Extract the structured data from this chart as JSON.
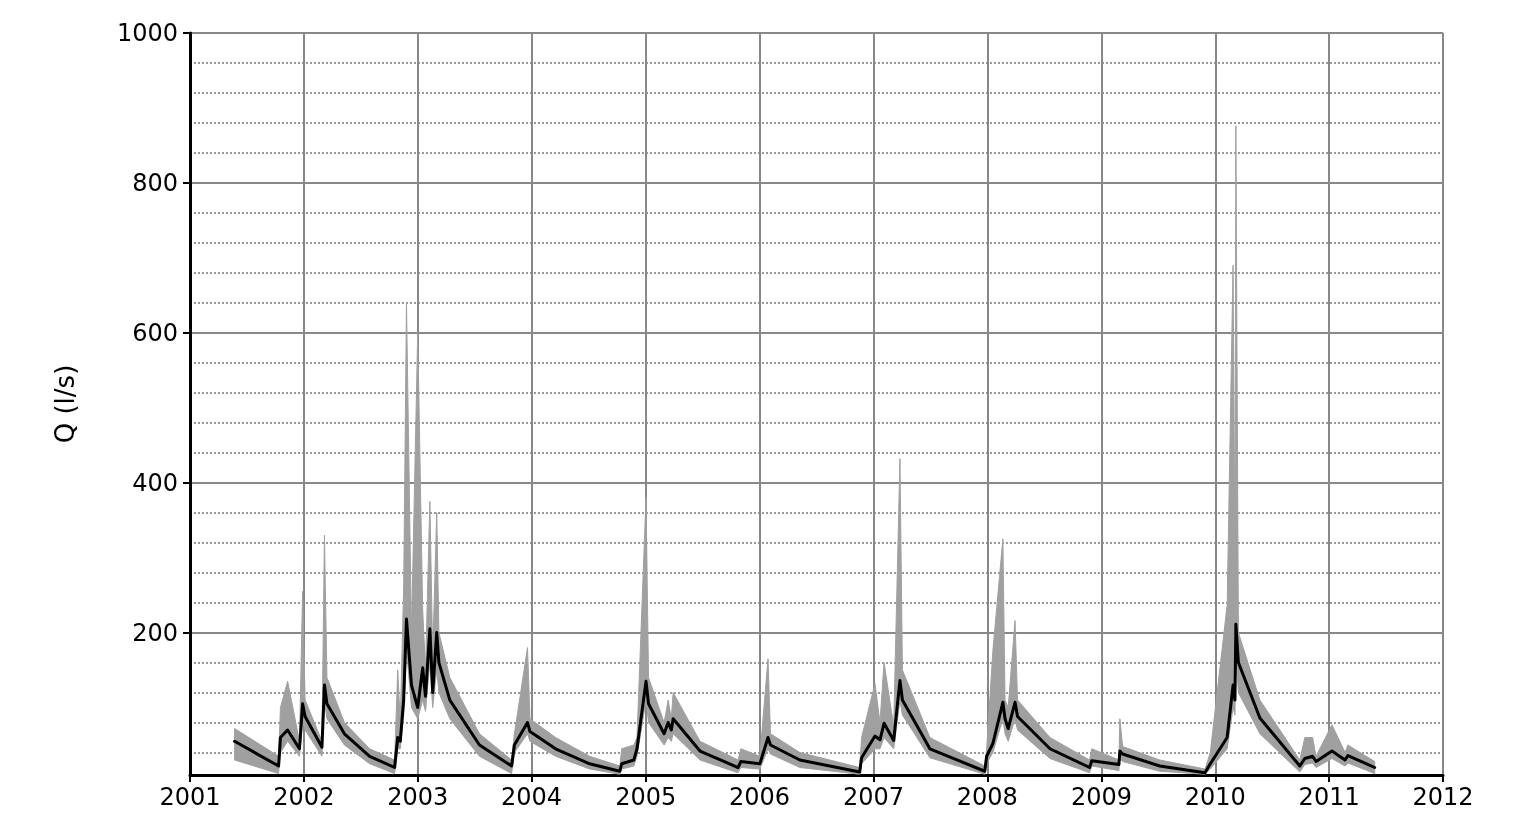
{
  "chart_data": {
    "type": "line",
    "ylabel": "Q (l/s)",
    "xlim": [
      "2001",
      "2012"
    ],
    "xticks": [
      "2001",
      "2002",
      "2003",
      "2004",
      "2005",
      "2006",
      "2007",
      "2008",
      "2009",
      "2010",
      "2011",
      "2012"
    ],
    "ylim": [
      10,
      1000
    ],
    "yticks": [
      {
        "value": 40,
        "label": null
      },
      {
        "value": 80,
        "label": null
      },
      {
        "value": 120,
        "label": null
      },
      {
        "value": 160,
        "label": null
      },
      200,
      {
        "value": 240,
        "label": null
      },
      {
        "value": 280,
        "label": null
      },
      {
        "value": 320,
        "label": null
      },
      {
        "value": 360,
        "label": null
      },
      400,
      {
        "value": 440,
        "label": null
      },
      {
        "value": 480,
        "label": null
      },
      {
        "value": 520,
        "label": null
      },
      {
        "value": 560,
        "label": null
      },
      600,
      {
        "value": 640,
        "label": null
      },
      {
        "value": 680,
        "label": null
      },
      {
        "value": 720,
        "label": null
      },
      {
        "value": 760,
        "label": null
      },
      800,
      {
        "value": 840,
        "label": null
      },
      {
        "value": 880,
        "label": null
      },
      {
        "value": 920,
        "label": null
      },
      {
        "value": 960,
        "label": null
      },
      1000
    ],
    "grid": true,
    "legend": false,
    "marker": "none",
    "line_style": "solid",
    "series": [
      {
        "color": "#000000",
        "x": [
          "2001-05-24",
          "2001-10-12",
          "2001-10-18",
          "2001-11-10",
          "2001-12-18",
          "2001-12-28",
          "2002-01-05",
          "2002-02-28",
          "2002-03-08",
          "2002-03-16",
          "2002-05-11",
          "2002-07-31",
          "2002-10-19",
          "2002-10-29",
          "2002-11-06",
          "2002-11-17",
          "2002-11-26",
          "2002-12-12",
          "2003-01-01",
          "2003-01-17",
          "2003-01-26",
          "2003-02-09",
          "2003-02-18",
          "2003-03-03",
          "2003-03-10",
          "2003-04-14",
          "2003-07-18",
          "2003-10-29",
          "2003-11-07",
          "2003-12-19",
          "2003-12-27",
          "2004-03-18",
          "2004-07-05",
          "2004-10-10",
          "2004-10-16",
          "2004-11-24",
          "2004-12-04",
          "2005-01-02",
          "2005-01-10",
          "2005-03-01",
          "2005-03-14",
          "2005-03-24",
          "2005-03-30",
          "2005-06-24",
          "2005-10-24",
          "2005-11-02",
          "2006-01-02",
          "2006-01-28",
          "2006-02-05",
          "2006-05-10",
          "2006-11-18",
          "2006-11-24",
          "2007-01-06",
          "2007-01-22",
          "2007-02-04",
          "2007-03-07",
          "2007-03-27",
          "2007-04-04",
          "2007-07-01",
          "2007-12-24",
          "2007-12-30",
          "2008-01-19",
          "2008-02-20",
          "2008-02-27",
          "2008-03-08",
          "2008-03-30",
          "2008-04-07",
          "2008-07-20",
          "2008-11-24",
          "2008-12-01",
          "2009-02-26",
          "2009-03-01",
          "2009-03-10",
          "2009-07-07",
          "2009-11-29",
          "2009-12-16",
          "2010-02-08",
          "2010-02-27",
          "2010-03-05",
          "2010-03-08",
          "2010-03-16",
          "2010-05-24",
          "2010-09-29",
          "2010-10-15",
          "2010-11-09",
          "2010-11-20",
          "2011-01-10",
          "2011-02-21",
          "2011-03-02",
          "2011-05-27"
        ],
        "values": [
          55,
          22,
          60,
          70,
          45,
          105,
          88,
          47,
          130,
          105,
          65,
          35,
          20,
          60,
          55,
          110,
          218,
          130,
          100,
          153,
          115,
          205,
          120,
          200,
          160,
          110,
          50,
          22,
          50,
          80,
          68,
          45,
          25,
          15,
          25,
          30,
          45,
          135,
          105,
          65,
          80,
          70,
          85,
          42,
          20,
          28,
          25,
          60,
          50,
          30,
          14,
          33,
          62,
          57,
          79,
          56,
          136,
          110,
          45,
          15,
          35,
          52,
          107,
          85,
          72,
          107,
          88,
          45,
          20,
          29,
          24,
          42,
          38,
          22,
          13,
          25,
          60,
          130,
          110,
          211,
          160,
          86,
          22,
          32,
          35,
          28,
          42,
          30,
          36,
          20
        ],
        "upper": [
          72,
          35,
          100,
          135,
          55,
          255,
          110,
          55,
          330,
          140,
          80,
          45,
          30,
          150,
          80,
          260,
          640,
          200,
          600,
          230,
          150,
          375,
          170,
          360,
          200,
          140,
          65,
          30,
          65,
          180,
          85,
          60,
          35,
          22,
          45,
          50,
          60,
          380,
          140,
          80,
          110,
          85,
          120,
          55,
          30,
          45,
          35,
          165,
          65,
          40,
          20,
          60,
          132,
          80,
          160,
          75,
          432,
          150,
          60,
          22,
          45,
          176,
          325,
          110,
          100,
          216,
          110,
          60,
          30,
          45,
          30,
          85,
          48,
          30,
          18,
          40,
          237,
          690,
          300,
          876,
          200,
          110,
          30,
          60,
          60,
          35,
          77,
          40,
          50,
          28
        ],
        "lower": [
          30,
          12,
          40,
          55,
          35,
          80,
          70,
          35,
          110,
          85,
          50,
          25,
          12,
          45,
          45,
          90,
          180,
          100,
          85,
          110,
          95,
          160,
          100,
          150,
          120,
          85,
          35,
          12,
          40,
          65,
          55,
          35,
          18,
          11,
          18,
          22,
          35,
          110,
          80,
          50,
          60,
          55,
          65,
          30,
          13,
          20,
          18,
          45,
          38,
          20,
          11,
          25,
          45,
          45,
          60,
          45,
          110,
          90,
          33,
          11,
          25,
          40,
          85,
          65,
          55,
          85,
          70,
          32,
          13,
          22,
          16,
          32,
          28,
          15,
          11,
          18,
          45,
          100,
          90,
          170,
          120,
          65,
          14,
          24,
          26,
          20,
          32,
          22,
          26,
          12
        ]
      }
    ]
  }
}
